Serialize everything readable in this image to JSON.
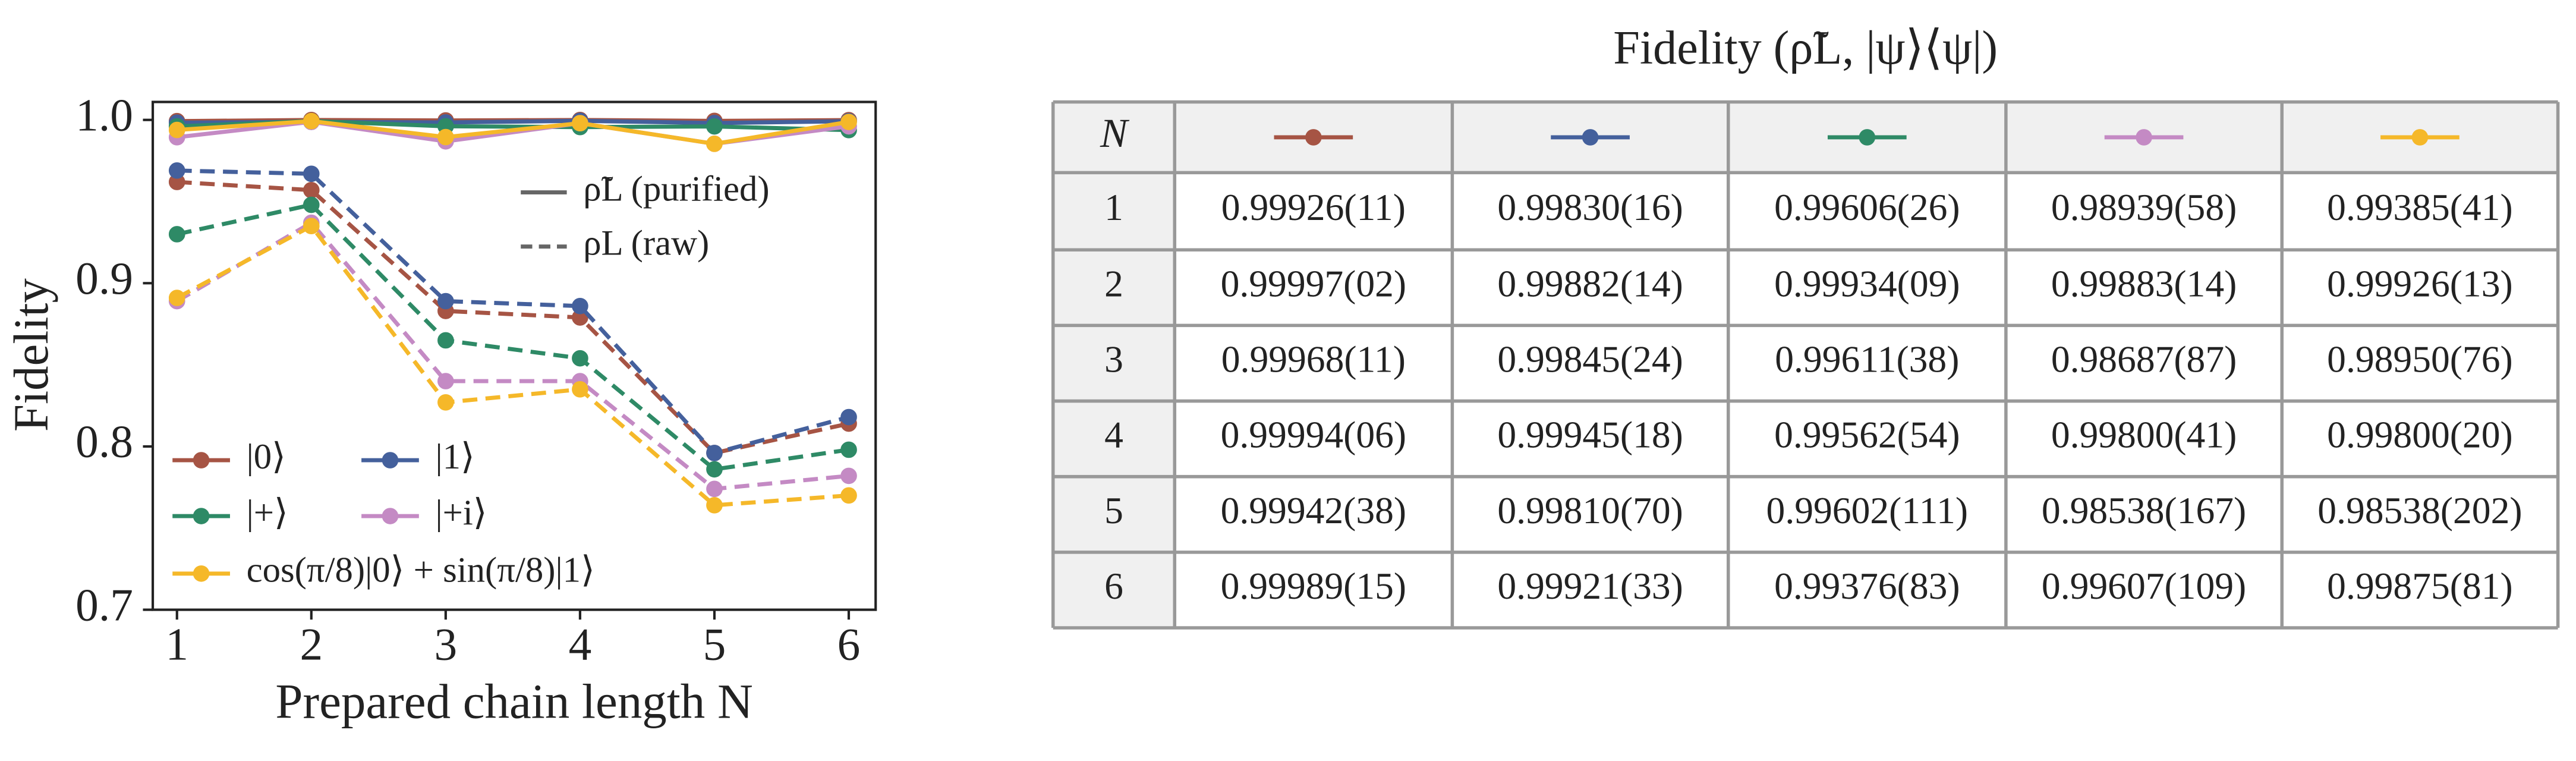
{
  "chart_data": {
    "type": "line",
    "xlabel": "Prepared chain length N",
    "ylabel": "Fidelity",
    "x": [
      1,
      2,
      3,
      4,
      5,
      6
    ],
    "xlim": [
      0.82,
      6.2
    ],
    "xticks": [
      1,
      2,
      3,
      4,
      5,
      6
    ],
    "ylim": [
      0.7,
      1.011
    ],
    "yticks": [
      {
        "value": 0.7,
        "label": "0.7"
      },
      {
        "value": 0.8,
        "label": "0.8"
      },
      {
        "value": 0.9,
        "label": "0.9"
      },
      {
        "value": 1.0,
        "label": "1.0"
      }
    ],
    "grid": false,
    "line_styles": [
      {
        "label": "ρ̃L  (purified)",
        "dashed": false
      },
      {
        "label": "ρL  (raw)",
        "dashed": true
      }
    ],
    "series": [
      {
        "name": "|0⟩",
        "color": "#a65444",
        "values": [
          0.99926,
          0.99997,
          0.99968,
          0.99994,
          0.99942,
          0.99989
        ],
        "raw_values": [
          0.962,
          0.957,
          0.883,
          0.879,
          0.796,
          0.814
        ]
      },
      {
        "name": "|1⟩",
        "color": "#44609c",
        "values": [
          0.9983,
          0.99882,
          0.99845,
          0.99945,
          0.9981,
          0.99921
        ],
        "raw_values": [
          0.969,
          0.967,
          0.889,
          0.886,
          0.796,
          0.818
        ]
      },
      {
        "name": "|+⟩",
        "color": "#2e8a66",
        "values": [
          0.99606,
          0.99934,
          0.99611,
          0.99562,
          0.99602,
          0.99376
        ],
        "raw_values": [
          0.93,
          0.948,
          0.865,
          0.854,
          0.786,
          0.798
        ]
      },
      {
        "name": "|+i⟩",
        "color": "#c48ac4",
        "values": [
          0.98939,
          0.99883,
          0.98687,
          0.998,
          0.98538,
          0.99607
        ],
        "raw_values": [
          0.889,
          0.937,
          0.84,
          0.84,
          0.774,
          0.782
        ]
      },
      {
        "name": "cos(π/8)|0⟩ + sin(π/8)|1⟩",
        "color": "#f5b829",
        "values": [
          0.99385,
          0.99926,
          0.9895,
          0.998,
          0.98538,
          0.99875
        ],
        "raw_values": [
          0.891,
          0.935,
          0.827,
          0.835,
          0.764,
          0.77
        ]
      }
    ]
  },
  "table": {
    "title": "Fidelity (ρ̃L, |ψ⟩⟨ψ|)",
    "header": "N",
    "rows": [
      [
        "1",
        "0.99926(11)",
        "0.99830(16)",
        "0.99606(26)",
        "0.98939(58)",
        "0.99385(41)"
      ],
      [
        "2",
        "0.99997(02)",
        "0.99882(14)",
        "0.99934(09)",
        "0.99883(14)",
        "0.99926(13)"
      ],
      [
        "3",
        "0.99968(11)",
        "0.99845(24)",
        "0.99611(38)",
        "0.98687(87)",
        "0.98950(76)"
      ],
      [
        "4",
        "0.99994(06)",
        "0.99945(18)",
        "0.99562(54)",
        "0.99800(41)",
        "0.99800(20)"
      ],
      [
        "5",
        "0.99942(38)",
        "0.99810(70)",
        "0.99602(111)",
        "0.98538(167)",
        "0.98538(202)"
      ],
      [
        "6",
        "0.99989(15)",
        "0.99921(33)",
        "0.99376(83)",
        "0.99607(109)",
        "0.99875(81)"
      ]
    ]
  }
}
